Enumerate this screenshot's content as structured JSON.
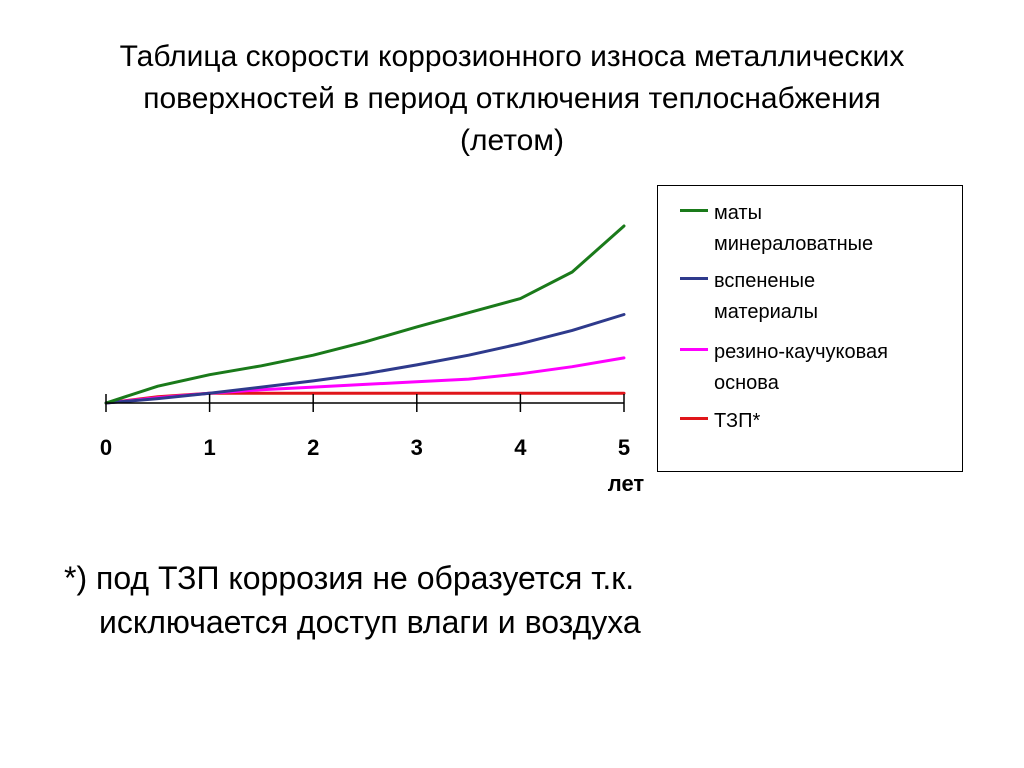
{
  "title": {
    "line1": "Таблица скорости коррозионного износа металлических",
    "line2": "поверхностей в период отключения теплоснабжения",
    "line3": "(летом)"
  },
  "chart_data": {
    "type": "line",
    "x": [
      0,
      0.5,
      1,
      1.5,
      2,
      2.5,
      3,
      3.5,
      4,
      4.5,
      5
    ],
    "xlim": [
      0,
      5
    ],
    "ylim": [
      0,
      1
    ],
    "xlabel": "лет",
    "ylabel": "",
    "tick_labels": [
      "0",
      "1",
      "2",
      "3",
      "4",
      "5"
    ],
    "grid": false,
    "legend_position": "right",
    "series": [
      {
        "name": "маты минераловатные",
        "color": "#1a7a1a",
        "values": [
          0,
          0.095,
          0.16,
          0.21,
          0.27,
          0.345,
          0.43,
          0.51,
          0.59,
          0.74,
          1.0
        ]
      },
      {
        "name": "вспененые материалы",
        "color": "#2e3a8c",
        "values": [
          0,
          0.025,
          0.055,
          0.09,
          0.125,
          0.165,
          0.215,
          0.27,
          0.335,
          0.41,
          0.5
        ]
      },
      {
        "name": "резино-каучуковая основа",
        "color": "#ff00ff",
        "values": [
          0,
          0.03,
          0.055,
          0.075,
          0.09,
          0.105,
          0.12,
          0.135,
          0.165,
          0.205,
          0.255
        ]
      },
      {
        "name": "ТЗП*",
        "color": "#e0161a",
        "values": [
          0,
          0.035,
          0.055,
          0.055,
          0.055,
          0.055,
          0.055,
          0.055,
          0.055,
          0.055,
          0.055
        ]
      }
    ]
  },
  "legend": {
    "items": [
      {
        "line1": "маты",
        "line2": "минераловатные"
      },
      {
        "line1": "вспененые",
        "line2": "материалы"
      },
      {
        "line1": "резино-каучуковая",
        "line2": "основа"
      },
      {
        "line1": "ТЗП*",
        "line2": ""
      }
    ]
  },
  "footnote": {
    "line1": "*) под ТЗП коррозия не образуется т.к.",
    "line2": "исключается доступ влаги и воздуха"
  }
}
